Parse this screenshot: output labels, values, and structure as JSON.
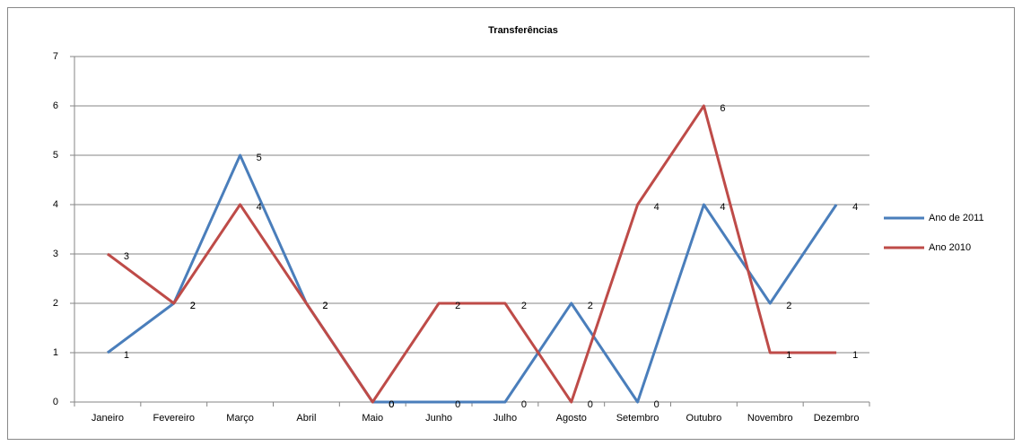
{
  "chart_data": {
    "type": "line",
    "title": "Transferências",
    "categories": [
      "Janeiro",
      "Fevereiro",
      "Março",
      "Abril",
      "Maio",
      "Junho",
      "Julho",
      "Agosto",
      "Setembro",
      "Outubro",
      "Novembro",
      "Dezembro"
    ],
    "series": [
      {
        "name": "Ano de 2011",
        "color": "#4a7ebb",
        "values": [
          1,
          2,
          5,
          2,
          0,
          0,
          0,
          2,
          0,
          4,
          2,
          4
        ]
      },
      {
        "name": "Ano 2010",
        "color": "#be4b48",
        "values": [
          3,
          2,
          4,
          2,
          0,
          2,
          2,
          0,
          4,
          6,
          1,
          1
        ]
      }
    ],
    "ylim": [
      0,
      7
    ],
    "yticks": [
      0,
      1,
      2,
      3,
      4,
      5,
      6,
      7
    ],
    "grid": true,
    "legend": "right"
  }
}
